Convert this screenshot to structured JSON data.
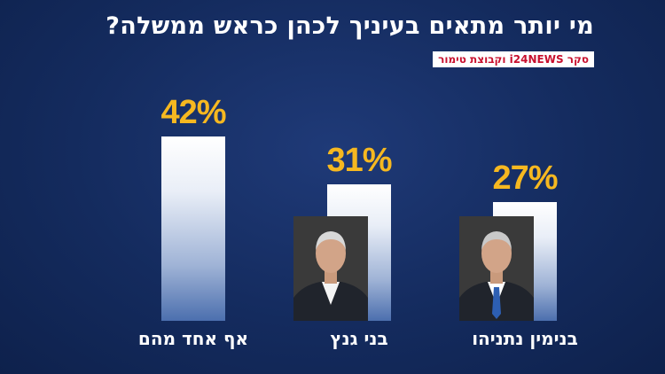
{
  "title": "מי יותר מתאים בעיניך לכהן כראש ממשלה?",
  "source": "סקר i24NEWS וקבוצת טימור",
  "colors": {
    "background": "#142b5e",
    "value_label": "#f6b820",
    "source": "#c8102e"
  },
  "chart_data": {
    "type": "bar",
    "title": "מי יותר מתאים בעיניך לכהן כראש ממשלה?",
    "categories": [
      "אף אחד מהם",
      "בני גנץ",
      "בנימין נתניהו"
    ],
    "values": [
      42,
      31,
      27
    ],
    "value_labels": [
      "42%",
      "31%",
      "27%"
    ],
    "ylim": [
      0,
      42
    ],
    "grid": false,
    "xlabel": "",
    "ylabel": ""
  }
}
